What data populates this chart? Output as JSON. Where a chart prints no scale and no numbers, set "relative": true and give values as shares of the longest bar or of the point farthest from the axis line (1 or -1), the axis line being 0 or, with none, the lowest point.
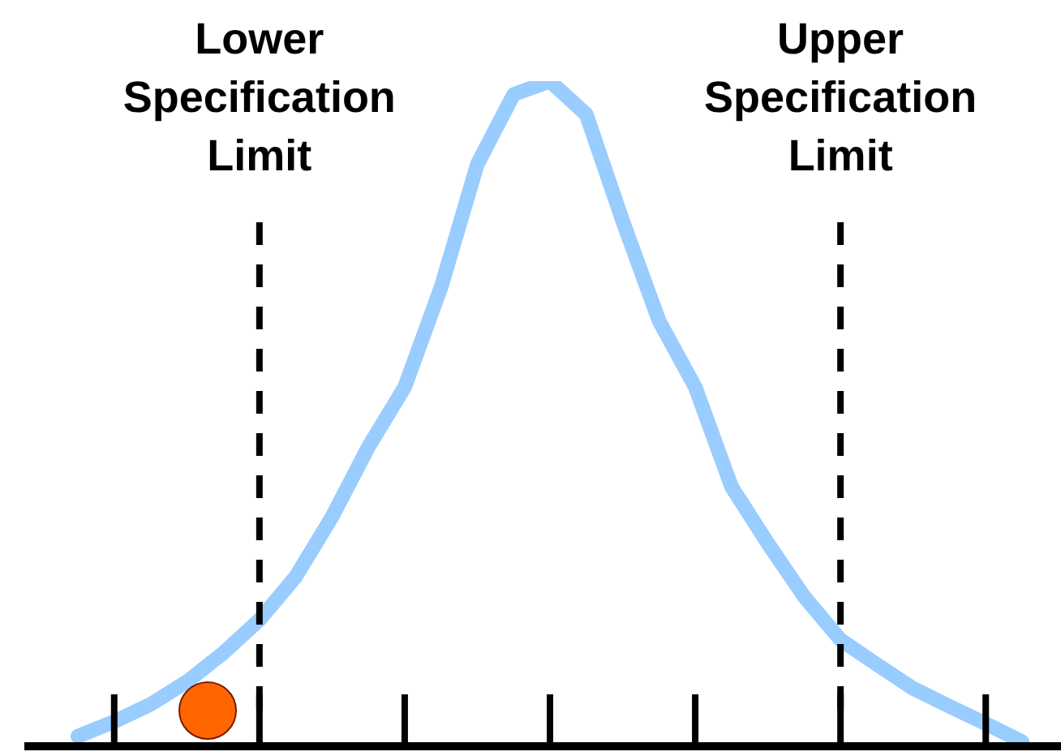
{
  "chart_data": {
    "type": "line",
    "relative": true,
    "categories": [
      null,
      null,
      null,
      null,
      null,
      null,
      null,
      null,
      null,
      null,
      null,
      null,
      null,
      null,
      null,
      null,
      null,
      null,
      null,
      null,
      null,
      null,
      null,
      null,
      null,
      null,
      null
    ],
    "series": [
      {
        "color": "#99ccff",
        "values": [
          0.015,
          0.037,
          0.063,
          0.097,
          0.14,
          0.19,
          0.255,
          0.345,
          0.45,
          0.54,
          0.69,
          0.875,
          0.98,
          1.0,
          0.95,
          0.79,
          0.64,
          0.54,
          0.39,
          0.305,
          0.225,
          0.16,
          0.123,
          0.087,
          0.06,
          0.034,
          0.007
        ]
      }
    ],
    "annotations": [
      "Lower Specification Limit",
      "Upper Specification Limit"
    ],
    "grid": false,
    "legend": false,
    "marker": "none",
    "line_style": "solid"
  }
}
